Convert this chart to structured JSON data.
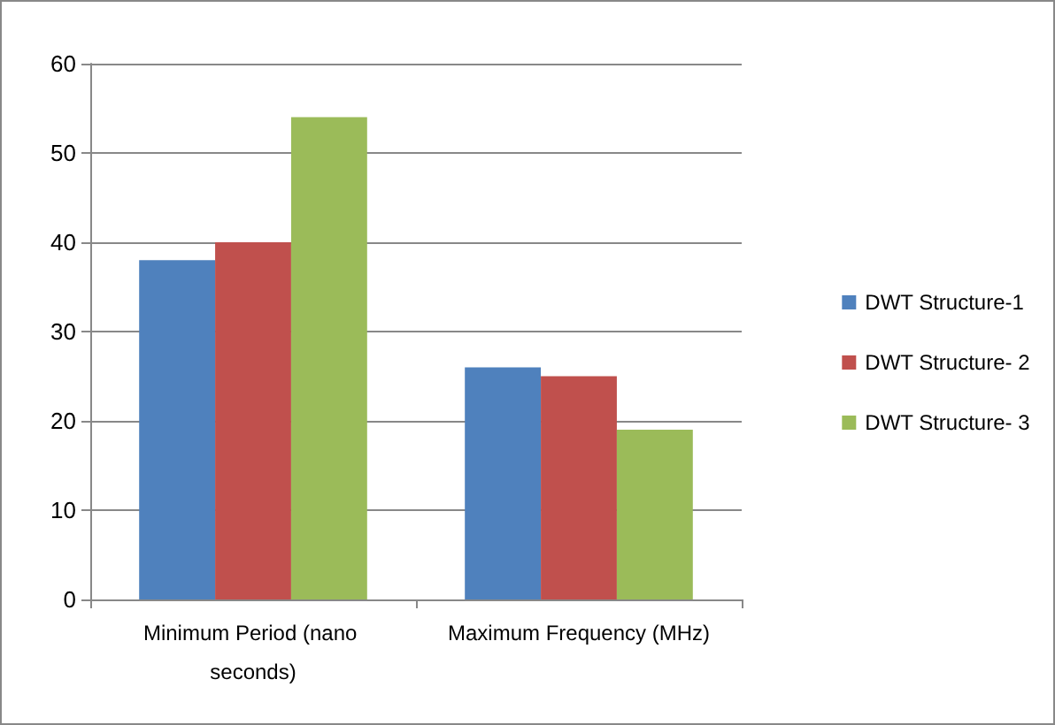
{
  "chart_data": {
    "type": "bar",
    "categories": [
      "Minimum Period (nano seconds)",
      "Maximum Frequency (MHz)"
    ],
    "series": [
      {
        "name": "DWT Structure-1",
        "color": "#4f81bd",
        "values": [
          38,
          26
        ]
      },
      {
        "name": "DWT Structure- 2",
        "color": "#c0504d",
        "values": [
          40,
          25
        ]
      },
      {
        "name": "DWT Structure- 3",
        "color": "#9bbb59",
        "values": [
          54,
          19
        ]
      }
    ],
    "ylim": [
      0,
      60
    ],
    "yticks": [
      0,
      10,
      20,
      30,
      40,
      50,
      60
    ],
    "grid": "y",
    "legend": "right"
  }
}
